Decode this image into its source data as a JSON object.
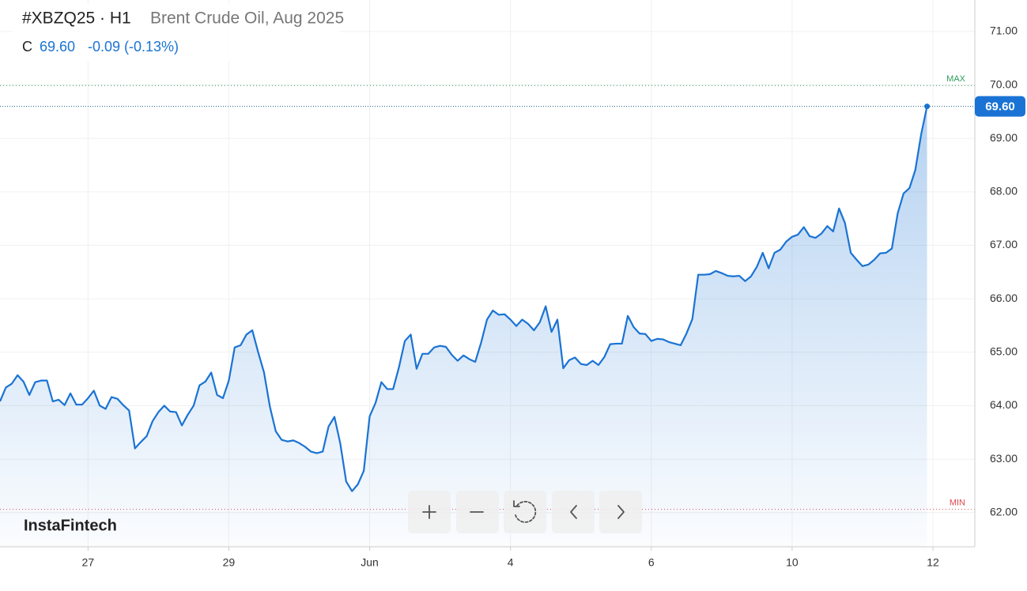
{
  "chart_data": {
    "type": "area",
    "title": "#XBZQ25 · H1",
    "subtitle": "Brent Crude Oil, Aug 2025",
    "close_label": "C",
    "close": {
      "value": 69.6,
      "label": "69.60"
    },
    "change": "-0.09 (-0.13%)",
    "watermark": "InstaFintech",
    "color": "#1a73d4",
    "grid": true,
    "max_marker": {
      "label": "MAX",
      "value": 69.99,
      "color": "#2e9e5b"
    },
    "min_marker": {
      "label": "MIN",
      "value": 62.06,
      "color": "#e0474c"
    },
    "categories": [
      null,
      null,
      null,
      null,
      null,
      null,
      null,
      null,
      null,
      null,
      null,
      null,
      null,
      null,
      null,
      "27",
      null,
      null,
      null,
      null,
      null,
      null,
      null,
      null,
      null,
      null,
      null,
      null,
      null,
      null,
      null,
      null,
      null,
      null,
      null,
      null,
      null,
      null,
      null,
      "29",
      null,
      null,
      null,
      null,
      null,
      null,
      null,
      null,
      null,
      null,
      null,
      null,
      null,
      null,
      null,
      null,
      null,
      null,
      null,
      null,
      null,
      null,
      null,
      "Jun",
      null,
      null,
      null,
      null,
      null,
      null,
      null,
      null,
      null,
      null,
      null,
      null,
      null,
      null,
      null,
      null,
      null,
      null,
      null,
      null,
      null,
      null,
      null,
      "4",
      null,
      null,
      null,
      null,
      null,
      null,
      null,
      null,
      null,
      null,
      null,
      null,
      null,
      null,
      null,
      null,
      null,
      null,
      null,
      null,
      null,
      null,
      null,
      "6",
      null,
      null,
      null,
      null,
      null,
      null,
      null,
      null,
      null,
      null,
      null,
      null,
      null,
      null,
      null,
      null,
      null,
      null,
      null,
      null,
      null,
      null,
      null,
      "10",
      null,
      null,
      null,
      null,
      null,
      null,
      null,
      null,
      null,
      null,
      null,
      null,
      null,
      null,
      null,
      null,
      null,
      null,
      null,
      null,
      null,
      null,
      null,
      "12"
    ],
    "values": [
      64.08,
      64.34,
      64.41,
      64.57,
      64.45,
      64.2,
      64.44,
      64.47,
      64.47,
      64.08,
      64.11,
      64.01,
      64.23,
      64.02,
      64.02,
      64.14,
      64.28,
      64.0,
      63.94,
      64.16,
      64.13,
      64.01,
      63.91,
      63.2,
      63.32,
      63.43,
      63.71,
      63.88,
      64.0,
      63.89,
      63.88,
      63.63,
      63.83,
      64.0,
      64.38,
      64.45,
      64.62,
      64.2,
      64.14,
      64.47,
      65.09,
      65.13,
      65.33,
      65.41,
      65.0,
      64.62,
      63.98,
      63.52,
      63.36,
      63.33,
      63.35,
      63.3,
      63.23,
      63.14,
      63.11,
      63.14,
      63.61,
      63.79,
      63.29,
      62.58,
      62.4,
      62.53,
      62.78,
      63.8,
      64.05,
      64.44,
      64.31,
      64.31,
      64.72,
      65.21,
      65.33,
      64.69,
      64.97,
      64.97,
      65.09,
      65.12,
      65.1,
      64.95,
      64.84,
      64.94,
      64.87,
      64.82,
      65.18,
      65.61,
      65.78,
      65.7,
      65.71,
      65.61,
      65.49,
      65.61,
      65.53,
      65.41,
      65.56,
      65.86,
      65.38,
      65.61,
      64.7,
      64.85,
      64.9,
      64.78,
      64.76,
      64.84,
      64.76,
      64.91,
      65.15,
      65.16,
      65.16,
      65.68,
      65.47,
      65.35,
      65.34,
      65.21,
      65.25,
      65.24,
      65.19,
      65.16,
      65.13,
      65.35,
      65.62,
      66.45,
      66.45,
      66.46,
      66.52,
      66.48,
      66.43,
      66.42,
      66.43,
      66.33,
      66.42,
      66.6,
      66.86,
      66.57,
      66.86,
      66.92,
      67.07,
      67.16,
      67.2,
      67.34,
      67.17,
      67.14,
      67.22,
      67.36,
      67.26,
      67.69,
      67.42,
      66.86,
      66.73,
      66.61,
      66.64,
      66.73,
      66.85,
      66.86,
      66.94,
      67.6,
      67.97,
      68.07,
      68.41,
      69.08,
      69.6,
      null
    ],
    "ylim": [
      61.36,
      71.59
    ],
    "yticks": [
      {
        "value": 62,
        "label": "62.00"
      },
      {
        "value": 63,
        "label": "63.00"
      },
      {
        "value": 64,
        "label": "64.00"
      },
      {
        "value": 65,
        "label": "65.00"
      },
      {
        "value": 66,
        "label": "66.00"
      },
      {
        "value": 67,
        "label": "67.00"
      },
      {
        "value": 68,
        "label": "68.00"
      },
      {
        "value": 69,
        "label": "69.00"
      },
      {
        "value": 70,
        "label": "70.00"
      },
      {
        "value": 71,
        "label": "71.00"
      }
    ]
  }
}
